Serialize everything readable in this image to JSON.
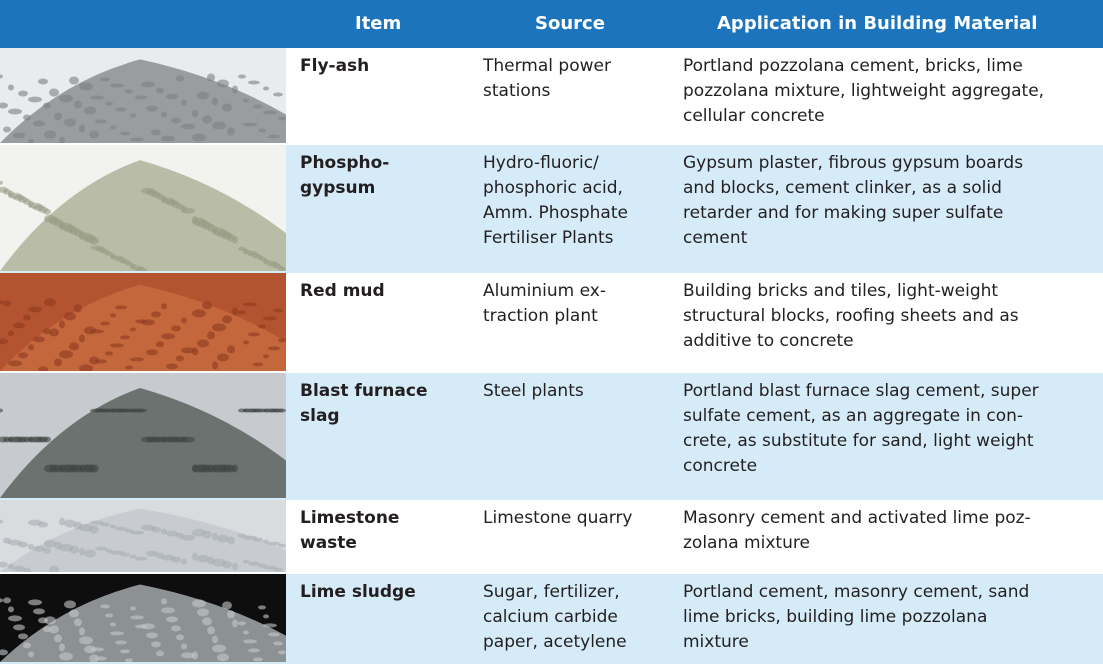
{
  "table": {
    "header": [
      "Item",
      "Source",
      "Application in Building Material"
    ],
    "rows": [
      {
        "item": [
          "Fly-ash"
        ],
        "source": [
          "Thermal power",
          "stations"
        ],
        "application": [
          "Portland pozzolana cement, bricks, lime",
          "pozzolana mixture, lightweight aggregate,",
          "cellular concrete"
        ]
      },
      {
        "item": [
          "Phospho-",
          "gypsum"
        ],
        "source": [
          "Hydro-fluoric/",
          "phosphoric acid,",
          "Amm. Phosphate",
          "Fertiliser Plants"
        ],
        "application": [
          "Gypsum plaster, fibrous gypsum boards",
          "and blocks, cement clinker, as a solid",
          "retarder and for making super sulfate",
          "cement"
        ]
      },
      {
        "item": [
          "Red mud"
        ],
        "source": [
          "Aluminium ex-",
          "traction plant"
        ],
        "application": [
          "Building bricks and tiles, light-weight",
          "structural blocks, roofing sheets and as",
          "additive to concrete"
        ]
      },
      {
        "item": [
          "Blast furnace",
          "slag"
        ],
        "source": [
          "Steel plants"
        ],
        "application": [
          "Portland blast furnace slag cement, super",
          "sulfate cement, as an aggregate in con-",
          "crete, as substitute for sand, light weight",
          "concrete"
        ]
      },
      {
        "item": [
          "Limestone",
          "waste"
        ],
        "source": [
          "Limestone quarry"
        ],
        "application": [
          "Masonry cement and activated lime poz-",
          "zolana mixture"
        ]
      },
      {
        "item": [
          "Lime sludge"
        ],
        "source": [
          "Sugar, fertilizer,",
          "calcium carbide",
          "paper, acetylene"
        ],
        "application": [
          "Portland cement, masonry cement, sand",
          "lime bricks, building lime pozzolana",
          "mixture"
        ]
      }
    ]
  }
}
